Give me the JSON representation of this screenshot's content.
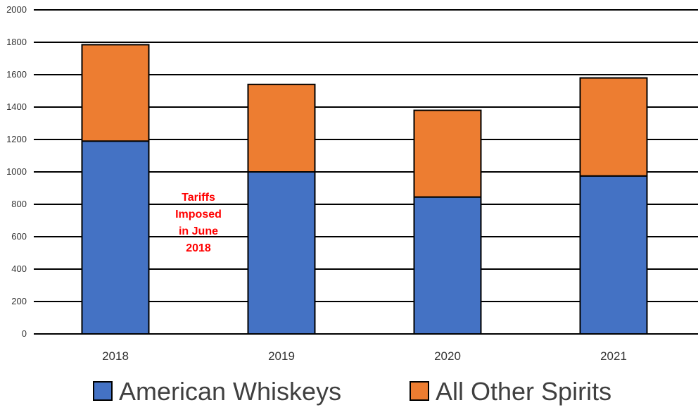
{
  "chart_data": {
    "type": "bar",
    "stacked": true,
    "categories": [
      "2018",
      "2019",
      "2020",
      "2021"
    ],
    "series": [
      {
        "name": "American Whiskeys",
        "values": [
          1190,
          1000,
          845,
          975
        ],
        "color": "#4472c4"
      },
      {
        "name": "All Other Spirits",
        "values": [
          595,
          540,
          535,
          605
        ],
        "color": "#ed7d31"
      }
    ],
    "ylim": [
      0,
      2000
    ],
    "yticks": [
      0,
      200,
      400,
      600,
      800,
      1000,
      1200,
      1400,
      1600,
      1800,
      2000
    ],
    "grid": true,
    "legend_position": "bottom",
    "annotation": {
      "lines": [
        "Tariffs",
        "Imposed",
        "in June",
        "2018"
      ],
      "color": "#ff0000"
    }
  }
}
